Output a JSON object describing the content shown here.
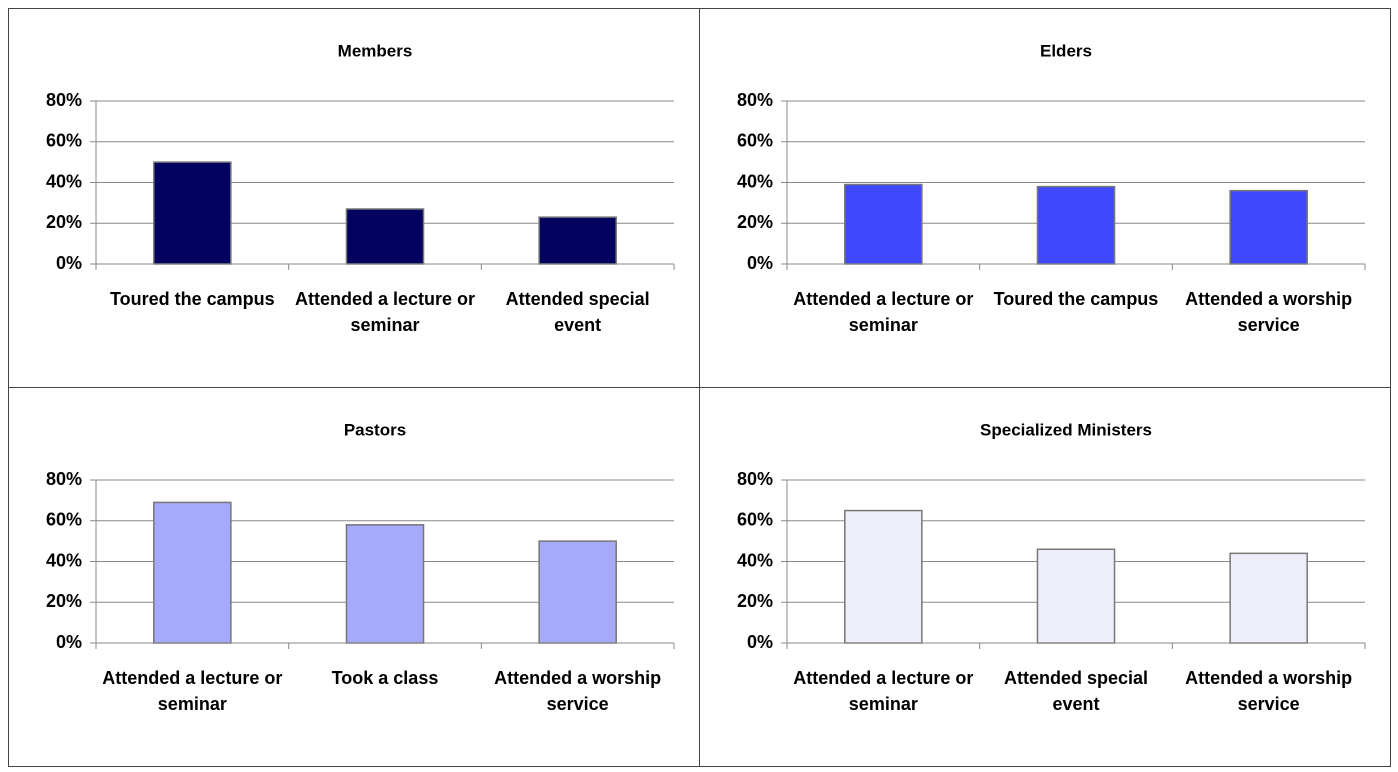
{
  "chart_data": [
    {
      "type": "bar",
      "title": "Members",
      "categories": [
        "Toured the campus",
        "Attended a lecture or seminar",
        "Attended special event"
      ],
      "values": [
        50,
        27,
        23
      ],
      "color": "#03035f",
      "ylim": [
        0,
        80
      ],
      "yticks": [
        {
          "value": 0,
          "label": "0%"
        },
        {
          "value": 20,
          "label": "20%"
        },
        {
          "value": 40,
          "label": "40%"
        },
        {
          "value": 60,
          "label": "60%"
        },
        {
          "value": 80,
          "label": "80%"
        }
      ],
      "grid": true
    },
    {
      "type": "bar",
      "title": "Elders",
      "categories": [
        "Attended a lecture or seminar",
        "Toured the campus",
        "Attended a worship service"
      ],
      "values": [
        39,
        38,
        36
      ],
      "color": "#3f48fb",
      "ylim": [
        0,
        80
      ],
      "yticks": [
        {
          "value": 0,
          "label": "0%"
        },
        {
          "value": 20,
          "label": "20%"
        },
        {
          "value": 40,
          "label": "40%"
        },
        {
          "value": 60,
          "label": "60%"
        },
        {
          "value": 80,
          "label": "80%"
        }
      ],
      "grid": true
    },
    {
      "type": "bar",
      "title": "Pastors",
      "categories": [
        "Attended a lecture or seminar",
        "Took a class",
        "Attended a worship service"
      ],
      "values": [
        69,
        58,
        50
      ],
      "color": "#a5aafa",
      "ylim": [
        0,
        80
      ],
      "yticks": [
        {
          "value": 0,
          "label": "0%"
        },
        {
          "value": 20,
          "label": "20%"
        },
        {
          "value": 40,
          "label": "40%"
        },
        {
          "value": 60,
          "label": "60%"
        },
        {
          "value": 80,
          "label": "80%"
        }
      ],
      "grid": true
    },
    {
      "type": "bar",
      "title": "Specialized Ministers",
      "categories": [
        "Attended a lecture or seminar",
        "Attended special event",
        "Attended a worship service"
      ],
      "values": [
        65,
        46,
        44
      ],
      "color": "#eeeefa",
      "ylim": [
        0,
        80
      ],
      "yticks": [
        {
          "value": 0,
          "label": "0%"
        },
        {
          "value": 20,
          "label": "20%"
        },
        {
          "value": 40,
          "label": "40%"
        },
        {
          "value": 60,
          "label": "60%"
        },
        {
          "value": 80,
          "label": "80%"
        }
      ],
      "grid": true
    }
  ]
}
